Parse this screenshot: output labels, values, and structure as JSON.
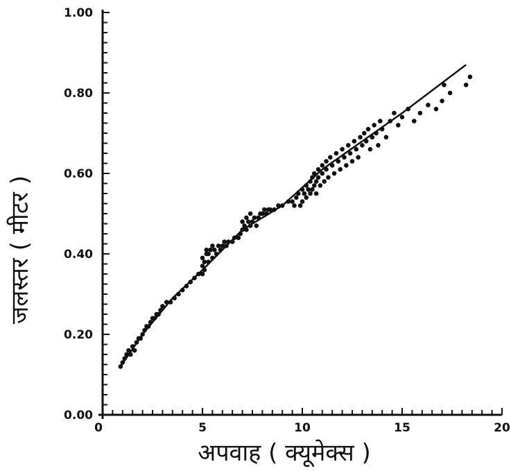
{
  "chart_data": {
    "type": "scatter",
    "xlabel": "अपवाह ( क्यूमेक्स )",
    "ylabel": "जलस्तर ( मीटर )",
    "xlim": [
      0,
      20
    ],
    "ylim": [
      0,
      1.0
    ],
    "x_ticks": [
      {
        "value": 0,
        "label": "0"
      },
      {
        "value": 5,
        "label": "5"
      },
      {
        "value": 10,
        "label": "10"
      },
      {
        "value": 15,
        "label": "15"
      },
      {
        "value": 20,
        "label": "20"
      }
    ],
    "y_ticks": [
      {
        "value": 0.0,
        "label": "0.00"
      },
      {
        "value": 0.2,
        "label": "0.20"
      },
      {
        "value": 0.4,
        "label": "0.40"
      },
      {
        "value": 0.6,
        "label": "0.60"
      },
      {
        "value": 0.8,
        "label": "0.80"
      },
      {
        "value": 1.0,
        "label": "1.00"
      }
    ],
    "grid": false,
    "fit_line": [
      [
        0.9,
        0.12
      ],
      [
        2.0,
        0.2
      ],
      [
        3.5,
        0.29
      ],
      [
        5.0,
        0.36
      ],
      [
        7.0,
        0.46
      ],
      [
        9.0,
        0.52
      ],
      [
        11.0,
        0.61
      ],
      [
        13.0,
        0.68
      ],
      [
        15.0,
        0.75
      ],
      [
        18.2,
        0.87
      ]
    ],
    "points": [
      [
        0.9,
        0.12
      ],
      [
        1.0,
        0.13
      ],
      [
        1.1,
        0.14
      ],
      [
        1.2,
        0.15
      ],
      [
        1.3,
        0.16
      ],
      [
        1.4,
        0.15
      ],
      [
        1.5,
        0.17
      ],
      [
        1.6,
        0.16
      ],
      [
        1.7,
        0.18
      ],
      [
        1.8,
        0.19
      ],
      [
        1.9,
        0.19
      ],
      [
        2.0,
        0.2
      ],
      [
        2.1,
        0.21
      ],
      [
        2.2,
        0.22
      ],
      [
        2.3,
        0.22
      ],
      [
        2.4,
        0.23
      ],
      [
        2.5,
        0.24
      ],
      [
        2.6,
        0.24
      ],
      [
        2.7,
        0.25
      ],
      [
        2.8,
        0.25
      ],
      [
        2.9,
        0.26
      ],
      [
        3.0,
        0.27
      ],
      [
        3.2,
        0.28
      ],
      [
        3.4,
        0.28
      ],
      [
        3.6,
        0.29
      ],
      [
        3.8,
        0.3
      ],
      [
        4.0,
        0.31
      ],
      [
        4.2,
        0.32
      ],
      [
        4.4,
        0.33
      ],
      [
        4.6,
        0.34
      ],
      [
        4.8,
        0.35
      ],
      [
        5.0,
        0.35
      ],
      [
        5.0,
        0.37
      ],
      [
        5.0,
        0.39
      ],
      [
        5.1,
        0.36
      ],
      [
        5.1,
        0.38
      ],
      [
        5.2,
        0.4
      ],
      [
        5.2,
        0.41
      ],
      [
        5.3,
        0.38
      ],
      [
        5.3,
        0.4
      ],
      [
        5.4,
        0.41
      ],
      [
        5.5,
        0.39
      ],
      [
        5.5,
        0.42
      ],
      [
        5.6,
        0.41
      ],
      [
        5.7,
        0.4
      ],
      [
        5.8,
        0.42
      ],
      [
        5.9,
        0.41
      ],
      [
        6.0,
        0.42
      ],
      [
        6.1,
        0.43
      ],
      [
        6.2,
        0.42
      ],
      [
        6.3,
        0.43
      ],
      [
        6.5,
        0.43
      ],
      [
        6.6,
        0.44
      ],
      [
        6.8,
        0.44
      ],
      [
        6.9,
        0.45
      ],
      [
        7.0,
        0.46
      ],
      [
        7.0,
        0.48
      ],
      [
        7.1,
        0.47
      ],
      [
        7.2,
        0.46
      ],
      [
        7.2,
        0.49
      ],
      [
        7.3,
        0.48
      ],
      [
        7.4,
        0.47
      ],
      [
        7.4,
        0.5
      ],
      [
        7.5,
        0.48
      ],
      [
        7.6,
        0.49
      ],
      [
        7.7,
        0.47
      ],
      [
        7.8,
        0.49
      ],
      [
        7.9,
        0.5
      ],
      [
        8.0,
        0.5
      ],
      [
        8.1,
        0.51
      ],
      [
        8.2,
        0.5
      ],
      [
        8.3,
        0.51
      ],
      [
        8.4,
        0.51
      ],
      [
        8.6,
        0.51
      ],
      [
        8.8,
        0.52
      ],
      [
        9.0,
        0.52
      ],
      [
        9.3,
        0.53
      ],
      [
        9.5,
        0.53
      ],
      [
        9.6,
        0.52
      ],
      [
        9.7,
        0.54
      ],
      [
        9.8,
        0.55
      ],
      [
        9.9,
        0.52
      ],
      [
        10.0,
        0.56
      ],
      [
        10.0,
        0.53
      ],
      [
        10.1,
        0.55
      ],
      [
        10.2,
        0.57
      ],
      [
        10.2,
        0.54
      ],
      [
        10.3,
        0.56
      ],
      [
        10.4,
        0.58
      ],
      [
        10.4,
        0.55
      ],
      [
        10.5,
        0.59
      ],
      [
        10.5,
        0.56
      ],
      [
        10.6,
        0.6
      ],
      [
        10.6,
        0.57
      ],
      [
        10.7,
        0.58
      ],
      [
        10.7,
        0.55
      ],
      [
        10.8,
        0.61
      ],
      [
        10.8,
        0.59
      ],
      [
        10.9,
        0.57
      ],
      [
        11.0,
        0.62
      ],
      [
        11.0,
        0.6
      ],
      [
        11.1,
        0.58
      ],
      [
        11.2,
        0.63
      ],
      [
        11.2,
        0.61
      ],
      [
        11.3,
        0.59
      ],
      [
        11.4,
        0.64
      ],
      [
        11.5,
        0.62
      ],
      [
        11.6,
        0.6
      ],
      [
        11.7,
        0.65
      ],
      [
        11.8,
        0.63
      ],
      [
        11.9,
        0.61
      ],
      [
        12.0,
        0.66
      ],
      [
        12.1,
        0.64
      ],
      [
        12.2,
        0.62
      ],
      [
        12.3,
        0.67
      ],
      [
        12.4,
        0.65
      ],
      [
        12.5,
        0.63
      ],
      [
        12.6,
        0.68
      ],
      [
        12.7,
        0.66
      ],
      [
        12.8,
        0.64
      ],
      [
        12.9,
        0.69
      ],
      [
        13.0,
        0.67
      ],
      [
        13.1,
        0.7
      ],
      [
        13.2,
        0.68
      ],
      [
        13.3,
        0.71
      ],
      [
        13.4,
        0.66
      ],
      [
        13.5,
        0.69
      ],
      [
        13.6,
        0.72
      ],
      [
        13.7,
        0.7
      ],
      [
        13.8,
        0.67
      ],
      [
        13.9,
        0.73
      ],
      [
        14.0,
        0.71
      ],
      [
        14.2,
        0.69
      ],
      [
        14.4,
        0.73
      ],
      [
        14.6,
        0.75
      ],
      [
        14.8,
        0.72
      ],
      [
        15.0,
        0.74
      ],
      [
        15.3,
        0.76
      ],
      [
        15.6,
        0.73
      ],
      [
        15.9,
        0.75
      ],
      [
        16.3,
        0.77
      ],
      [
        16.7,
        0.76
      ],
      [
        17.0,
        0.78
      ],
      [
        17.1,
        0.82
      ],
      [
        17.4,
        0.8
      ],
      [
        18.2,
        0.82
      ],
      [
        18.4,
        0.84
      ]
    ]
  }
}
